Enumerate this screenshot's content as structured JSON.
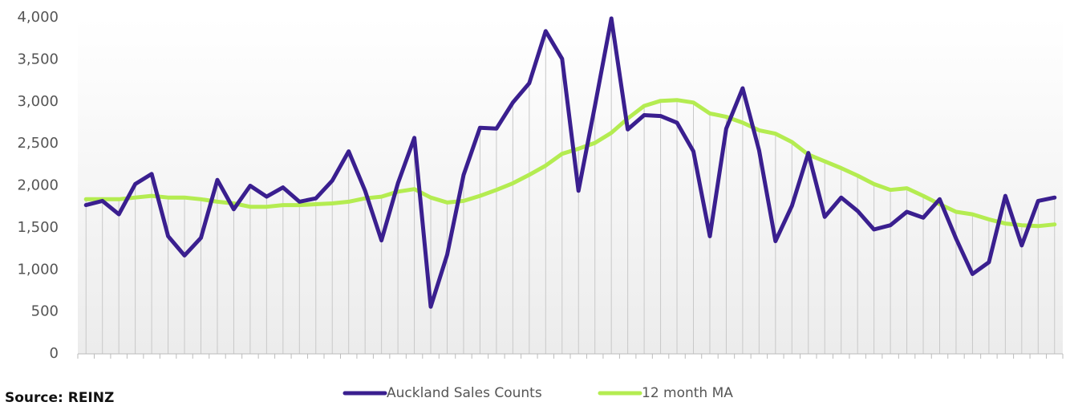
{
  "chart_data": {
    "type": "line",
    "categories": [
      null,
      null,
      null,
      null,
      null,
      null,
      null,
      null,
      null,
      null,
      null,
      null,
      null,
      null,
      null,
      null,
      null,
      null,
      null,
      null,
      null,
      null,
      null,
      null,
      null,
      null,
      null,
      null,
      null,
      null,
      null,
      null,
      null,
      null,
      null,
      null,
      null,
      null,
      null,
      null,
      null,
      null,
      null,
      null,
      null,
      null,
      null,
      null,
      null,
      null,
      null,
      null,
      null,
      null,
      null,
      null,
      null,
      null,
      null,
      null
    ],
    "series": [
      {
        "name": "Auckland Sales Counts",
        "color": "#3a1f8f",
        "values": [
          1770,
          1820,
          1660,
          2020,
          2140,
          1400,
          1170,
          1380,
          2070,
          1720,
          2000,
          1870,
          1980,
          1810,
          1850,
          2060,
          2410,
          1940,
          1350,
          2030,
          2570,
          560,
          1180,
          2130,
          2690,
          2680,
          2990,
          3220,
          3840,
          3510,
          1940,
          2950,
          3990,
          2670,
          2840,
          2830,
          2750,
          2410,
          1400,
          2680,
          3160,
          2420,
          1340,
          1760,
          2390,
          1630,
          1860,
          1700,
          1480,
          1530,
          1690,
          1620,
          1840,
          1370,
          950,
          1090,
          1880,
          1290,
          1820,
          1860
        ]
      },
      {
        "name": "12 month MA",
        "color": "#b4ec51",
        "values": [
          1840,
          1840,
          1840,
          1860,
          1880,
          1860,
          1860,
          1840,
          1810,
          1790,
          1750,
          1750,
          1770,
          1770,
          1780,
          1790,
          1810,
          1850,
          1870,
          1930,
          1960,
          1860,
          1800,
          1820,
          1880,
          1950,
          2030,
          2130,
          2240,
          2380,
          2440,
          2510,
          2630,
          2800,
          2950,
          3010,
          3020,
          2990,
          2860,
          2820,
          2750,
          2660,
          2620,
          2520,
          2370,
          2290,
          2210,
          2120,
          2020,
          1950,
          1970,
          1880,
          1780,
          1690,
          1660,
          1600,
          1550,
          1530,
          1520,
          1540
        ]
      }
    ],
    "ylim": [
      0,
      4000
    ],
    "yticks": [
      0,
      500,
      {
        "value": 1000,
        "label": "1,000"
      },
      {
        "value": 1500,
        "label": "1,500"
      },
      {
        "value": 2000,
        "label": "2,000"
      },
      {
        "value": 2500,
        "label": "2,500"
      },
      {
        "value": 3000,
        "label": "3,000"
      },
      {
        "value": 3500,
        "label": "3,500"
      },
      {
        "value": 4000,
        "label": "4,000"
      }
    ],
    "grid": false,
    "legend": "bottom",
    "source": "Source: REINZ"
  }
}
